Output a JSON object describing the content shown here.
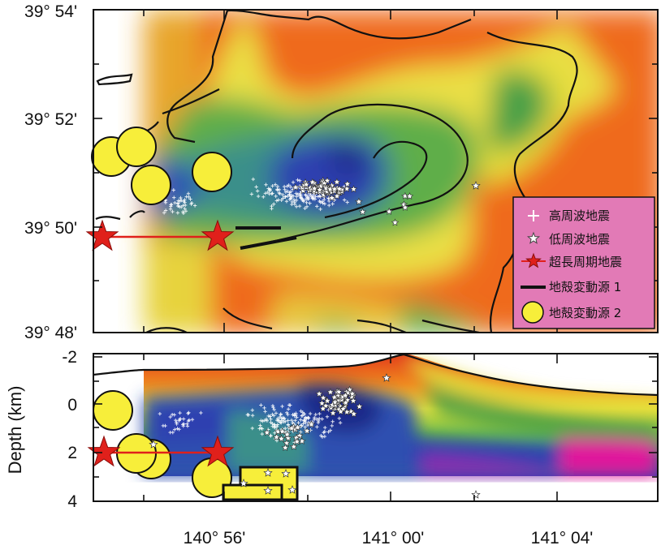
{
  "map_view": {
    "y_ticks": [
      "39° 54'",
      "39° 52'",
      "39° 50'",
      "39° 48'"
    ],
    "legend": {
      "high_freq_eq": "高周波地震",
      "low_freq_eq": "低周波地震",
      "vlp_eq": "超長周期地震",
      "deformation_source_1": "地殻変動源 1",
      "deformation_source_2": "地殻変動源 2"
    }
  },
  "section_view": {
    "y_axis_label": "Depth (km)",
    "y_ticks": [
      "-2",
      "0",
      "2",
      "4"
    ],
    "x_ticks": [
      "140° 56'",
      "141° 00'",
      "141° 04'"
    ]
  },
  "colors": {
    "legend_bg": "#e27ab6",
    "star_red": "#e0201b",
    "source2_yellow": "#f7ee3a",
    "low_velocity_blue": "#2f3fb0",
    "high_velocity_orange": "#ef6a1c",
    "section_magenta": "#e0169c"
  }
}
